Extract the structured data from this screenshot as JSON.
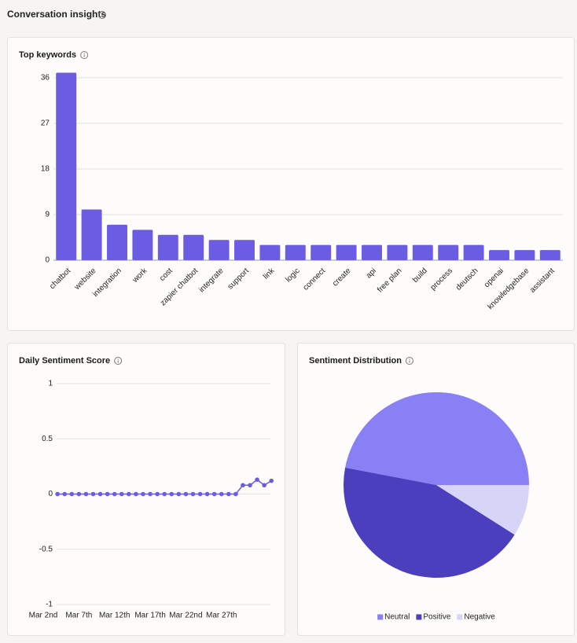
{
  "title": "Conversation insights",
  "chart_data": [
    {
      "type": "bar",
      "title": "Top keywords",
      "categories": [
        "chatbot",
        "website",
        "integration",
        "work",
        "cost",
        "zapier chatbot",
        "integrate",
        "support",
        "link",
        "logic",
        "connect",
        "create",
        "api",
        "free plan",
        "build",
        "process",
        "deutsch",
        "openai",
        "knowledgebase",
        "assistant"
      ],
      "values": [
        37,
        10,
        7,
        6,
        5,
        5,
        4,
        4,
        3,
        3,
        3,
        3,
        3,
        3,
        3,
        3,
        3,
        2,
        2,
        2
      ],
      "color": "#6b5ce3",
      "ylim": [
        0,
        38
      ],
      "yticks": [
        0,
        9,
        18,
        27,
        36
      ],
      "grid": true
    },
    {
      "type": "line",
      "title": "Daily Sentiment Score",
      "categories": [
        "Mar 2nd",
        null,
        null,
        null,
        null,
        "Mar 7th",
        null,
        null,
        null,
        null,
        "Mar 12th",
        null,
        null,
        null,
        null,
        "Mar 17th",
        null,
        null,
        null,
        null,
        "Mar 22nd",
        null,
        null,
        null,
        null,
        "Mar 27th",
        null,
        null,
        null,
        null,
        null,
        null,
        null
      ],
      "values": [
        null,
        null,
        0,
        0,
        0,
        0,
        0,
        0,
        0,
        0,
        0,
        0,
        0,
        0,
        0,
        0,
        0,
        0,
        0,
        0,
        0,
        0,
        0,
        0,
        0,
        0,
        0,
        0,
        0.08,
        0.08,
        0.13,
        0.08,
        0.12
      ],
      "color": "#6b5ce3",
      "ylim": [
        -1,
        1
      ],
      "yticks": [
        -1,
        -0.5,
        0,
        0.5,
        1
      ],
      "grid": true
    },
    {
      "type": "pie",
      "title": "Sentiment Distribution",
      "categories": [
        "Neutral",
        "Positive",
        "Negative"
      ],
      "values": [
        47,
        44,
        9
      ],
      "colors": [
        "#8980f6",
        "#4c3fbe",
        "#d6d5f7"
      ],
      "legend": "bottom"
    }
  ]
}
